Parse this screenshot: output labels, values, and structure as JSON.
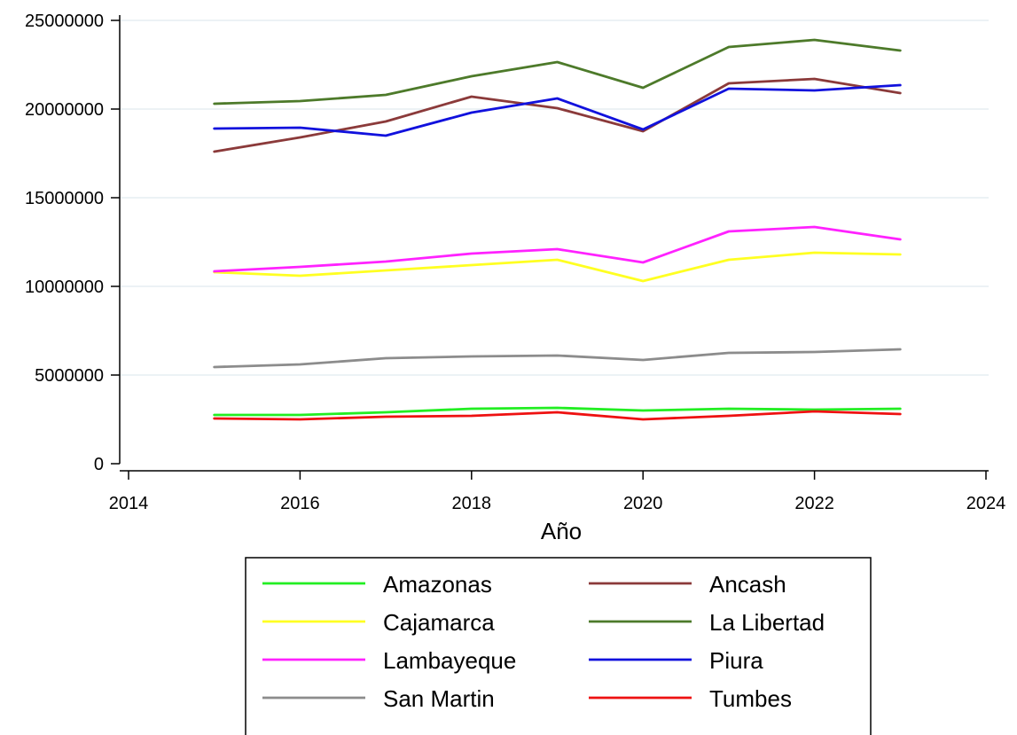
{
  "chart_data": {
    "type": "line",
    "title": "",
    "xlabel": "Año",
    "ylabel": "",
    "xlim": [
      2014,
      2024
    ],
    "ylim": [
      0,
      25000000
    ],
    "x_ticks": [
      2014,
      2016,
      2018,
      2020,
      2022,
      2024
    ],
    "y_ticks": [
      0,
      5000000,
      10000000,
      15000000,
      20000000,
      25000000
    ],
    "grid": "horizontal",
    "legend_position": "bottom",
    "x": [
      2015,
      2016,
      2017,
      2018,
      2019,
      2020,
      2021,
      2022,
      2023
    ],
    "series": [
      {
        "name": "Amazonas",
        "color": "#22ee22",
        "values": [
          2750000,
          2750000,
          2900000,
          3100000,
          3150000,
          3000000,
          3100000,
          3050000,
          3100000
        ]
      },
      {
        "name": "Ancash",
        "color": "#8b3a3a",
        "values": [
          17600000,
          18400000,
          19300000,
          20700000,
          20050000,
          18750000,
          21450000,
          21700000,
          20900000
        ]
      },
      {
        "name": "Cajamarca",
        "color": "#ffff22",
        "values": [
          10800000,
          10600000,
          10900000,
          11200000,
          11500000,
          10300000,
          11500000,
          11900000,
          11800000
        ]
      },
      {
        "name": "La Libertad",
        "color": "#4d7a2a",
        "values": [
          20300000,
          20450000,
          20800000,
          21850000,
          22650000,
          21200000,
          23500000,
          23900000,
          23300000
        ]
      },
      {
        "name": "Lambayeque",
        "color": "#ff22ff",
        "values": [
          10850000,
          11100000,
          11400000,
          11850000,
          12100000,
          11350000,
          13100000,
          13350000,
          12650000
        ]
      },
      {
        "name": "Piura",
        "color": "#1111dd",
        "values": [
          18900000,
          18950000,
          18500000,
          19800000,
          20600000,
          18850000,
          21150000,
          21050000,
          21350000
        ]
      },
      {
        "name": "San Martin",
        "color": "#8c8c8c",
        "values": [
          5450000,
          5600000,
          5950000,
          6050000,
          6100000,
          5850000,
          6250000,
          6300000,
          6450000
        ]
      },
      {
        "name": "Tumbes",
        "color": "#ee1111",
        "values": [
          2550000,
          2500000,
          2650000,
          2700000,
          2900000,
          2500000,
          2700000,
          2950000,
          2800000
        ]
      }
    ]
  }
}
